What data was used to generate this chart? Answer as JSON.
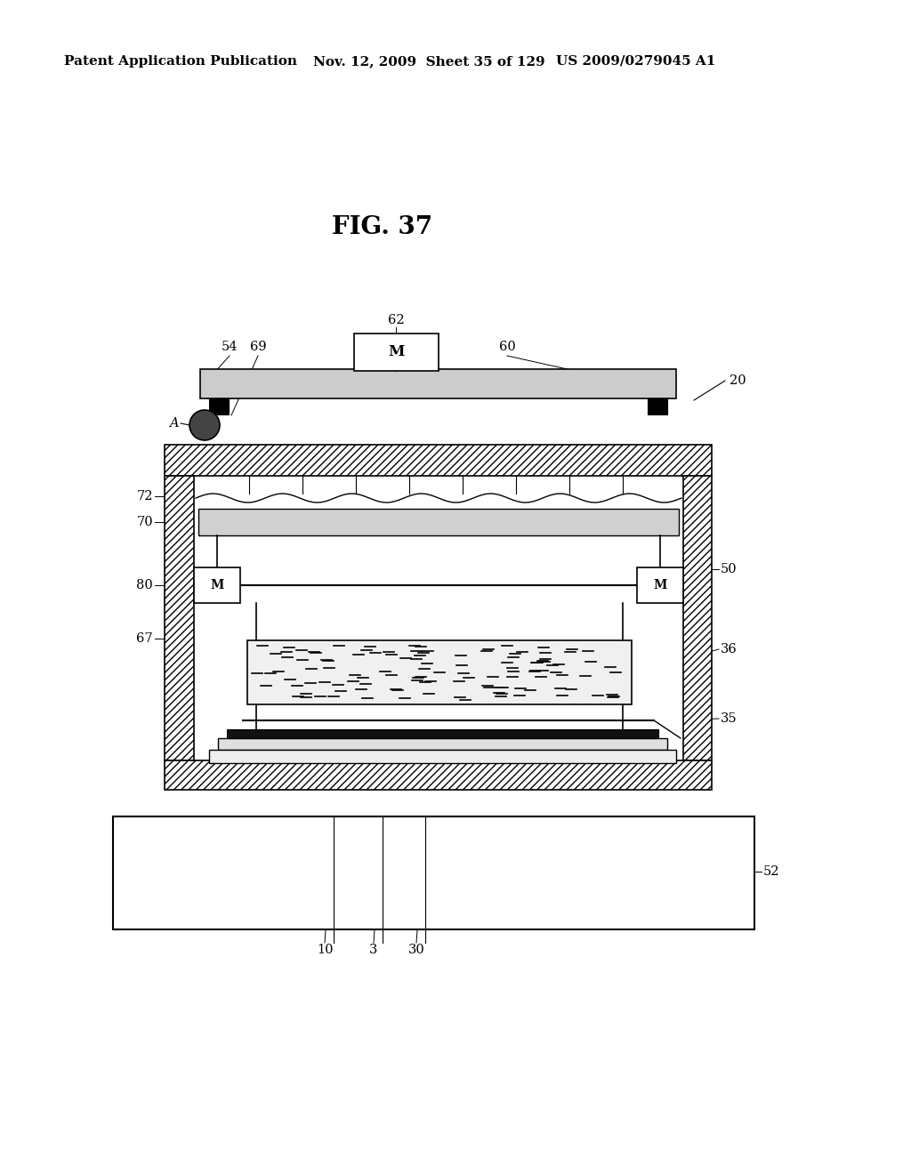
{
  "title": "FIG. 37",
  "header_left": "Patent Application Publication",
  "header_mid": "Nov. 12, 2009  Sheet 35 of 129",
  "header_right": "US 2009/0279045 A1",
  "bg_color": "#ffffff",
  "fig_title_fontsize": 20,
  "header_fontsize": 11
}
